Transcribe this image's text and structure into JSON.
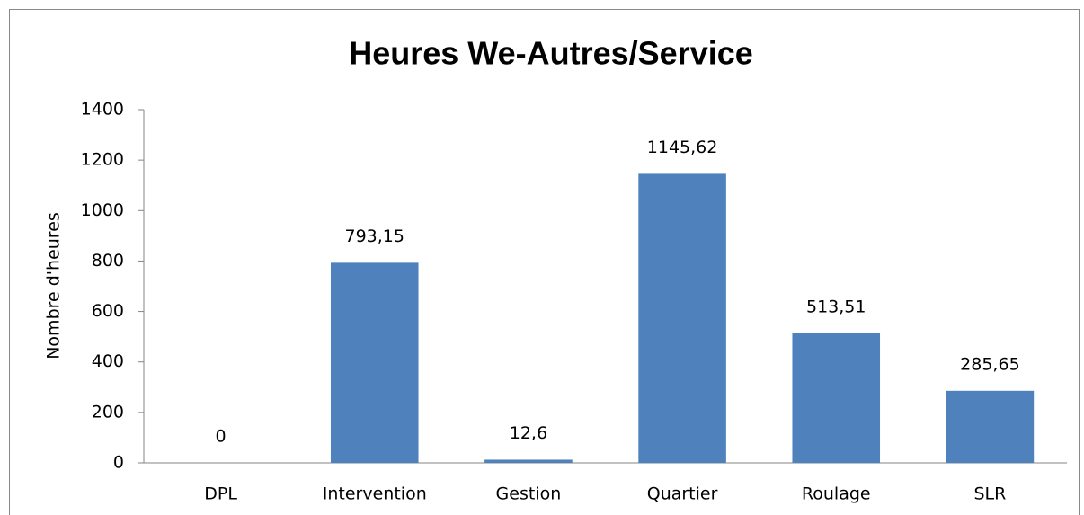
{
  "chart_data": {
    "type": "bar",
    "title": "Heures We-Autres/Service",
    "y_label": "Nombre d'heures",
    "categories": [
      "DPL",
      "Intervention",
      "Gestion",
      "Quartier",
      "Roulage",
      "SLR"
    ],
    "values": [
      0,
      793.15,
      12.6,
      1145.62,
      513.51,
      285.65
    ],
    "value_labels": [
      "0",
      "793,15",
      "12,6",
      "1145,62",
      "513,51",
      "285,65"
    ],
    "color": "#4f81bd",
    "ylim": [
      0,
      1400
    ],
    "yticks": [
      0,
      200,
      400,
      600,
      800,
      1000,
      1200,
      1400
    ],
    "grid": false
  }
}
